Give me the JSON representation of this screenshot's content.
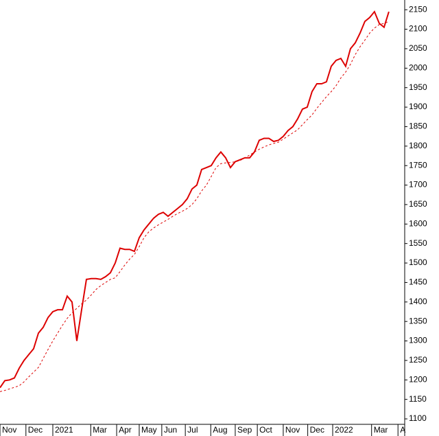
{
  "chart_data": {
    "type": "line",
    "xlim": [
      0,
      84.3
    ],
    "ylim": [
      1086,
      2175
    ],
    "yticks": [
      1100,
      1150,
      1200,
      1250,
      1300,
      1350,
      1400,
      1450,
      1500,
      1550,
      1600,
      1650,
      1700,
      1750,
      1800,
      1850,
      1900,
      1950,
      2000,
      2050,
      2100,
      2150
    ],
    "xticks": [
      {
        "value": 0,
        "label": "Nov"
      },
      {
        "value": 5.4,
        "label": "Dec"
      },
      {
        "value": 11,
        "label": "2021"
      },
      {
        "value": 18.9,
        "label": "Mar"
      },
      {
        "value": 24.3,
        "label": "Apr"
      },
      {
        "value": 29,
        "label": "May"
      },
      {
        "value": 33.7,
        "label": "Jun"
      },
      {
        "value": 38.6,
        "label": "Jul"
      },
      {
        "value": 43.9,
        "label": "Aug"
      },
      {
        "value": 49,
        "label": "Sep"
      },
      {
        "value": 53.6,
        "label": "Oct"
      },
      {
        "value": 59,
        "label": "Nov"
      },
      {
        "value": 64.1,
        "label": "Dec"
      },
      {
        "value": 69.3,
        "label": "2022"
      },
      {
        "value": 77.4,
        "label": "Mar"
      },
      {
        "value": 82.9,
        "label": "A"
      }
    ],
    "series": [
      {
        "color": "#dd0000",
        "style": "solid",
        "values": [
          1180,
          1198,
          1200,
          1205,
          1230,
          1250,
          1265,
          1280,
          1320,
          1335,
          1360,
          1375,
          1380,
          1380,
          1415,
          1400,
          1300,
          1380,
          1458,
          1460,
          1460,
          1458,
          1465,
          1475,
          1500,
          1538,
          1535,
          1535,
          1530,
          1565,
          1585,
          1600,
          1615,
          1625,
          1630,
          1620,
          1630,
          1640,
          1650,
          1665,
          1690,
          1700,
          1740,
          1745,
          1750,
          1770,
          1785,
          1770,
          1745,
          1760,
          1765,
          1770,
          1770,
          1785,
          1815,
          1820,
          1820,
          1812,
          1815,
          1825,
          1840,
          1850,
          1870,
          1895,
          1900,
          1940,
          1960,
          1960,
          1965,
          2005,
          2020,
          2025,
          2005,
          2050,
          2065,
          2090,
          2120,
          2130,
          2145,
          2115,
          2105,
          2145
        ]
      },
      {
        "color": "#dd0000",
        "style": "dashed",
        "values": [
          1170,
          1173,
          1177,
          1181,
          1185,
          1195,
          1208,
          1220,
          1232,
          1255,
          1278,
          1300,
          1320,
          1340,
          1358,
          1372,
          1384,
          1395,
          1405,
          1418,
          1432,
          1442,
          1450,
          1458,
          1462,
          1478,
          1495,
          1510,
          1522,
          1542,
          1565,
          1580,
          1590,
          1598,
          1605,
          1612,
          1620,
          1627,
          1633,
          1640,
          1650,
          1665,
          1685,
          1700,
          1722,
          1745,
          1755,
          1757,
          1758,
          1760,
          1763,
          1770,
          1777,
          1785,
          1792,
          1798,
          1803,
          1807,
          1810,
          1818,
          1826,
          1834,
          1842,
          1855,
          1868,
          1880,
          1897,
          1912,
          1927,
          1940,
          1955,
          1975,
          1990,
          2010,
          2035,
          2055,
          2072,
          2090,
          2103,
          2112,
          2115,
          2120
        ]
      }
    ]
  }
}
